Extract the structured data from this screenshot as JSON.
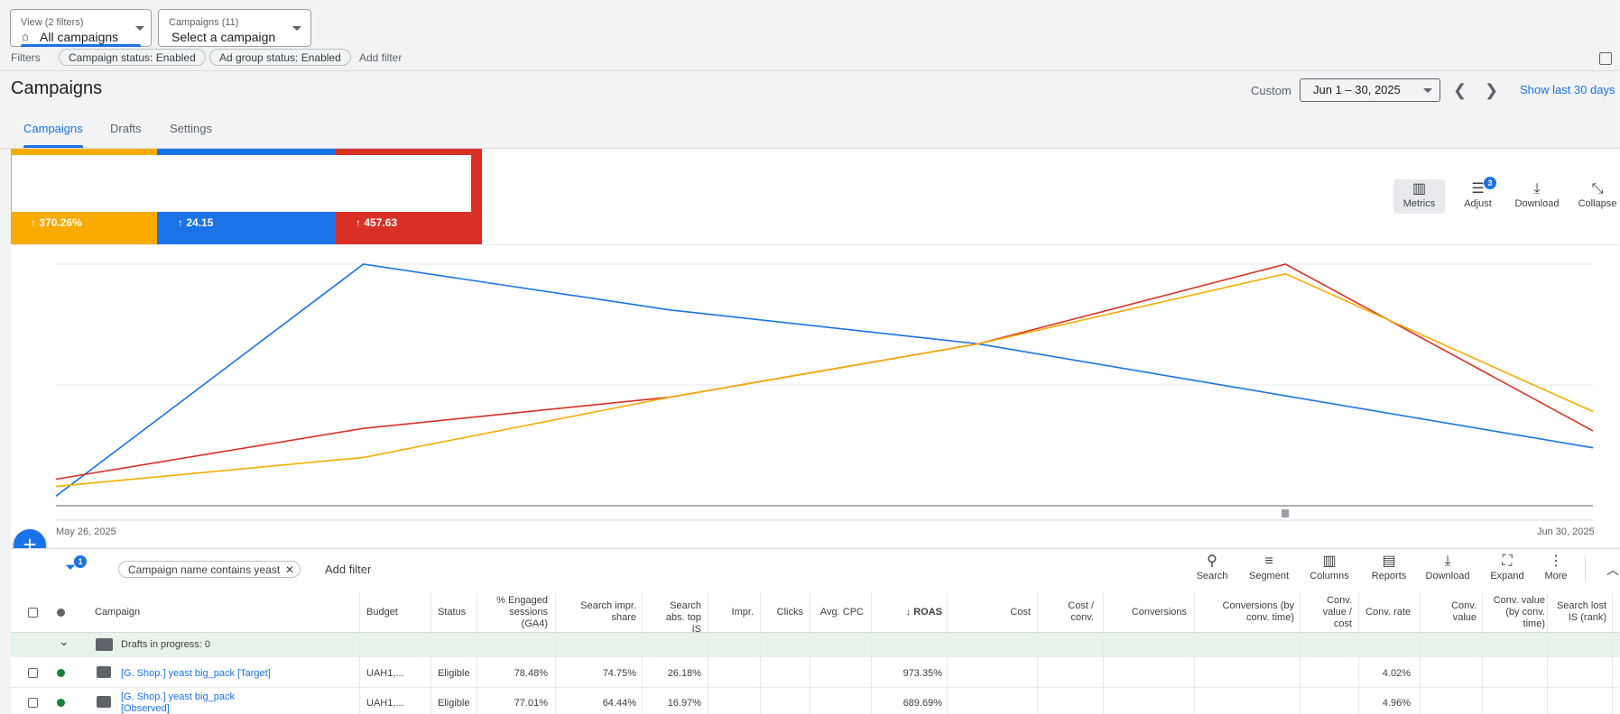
{
  "top": {
    "view_small": "View (2 filters)",
    "view_big": "All campaigns",
    "campaigns_small": "Campaigns (11)",
    "campaigns_big": "Select a campaign",
    "filters_label": "Filters",
    "chip1": "Campaign status: Enabled",
    "chip2": "Ad group status: Enabled",
    "add_filter": "Add filter"
  },
  "header": {
    "title": "Campaigns",
    "custom": "Custom",
    "date_range": "Jun 1 – 30, 2025",
    "show_last": "Show last 30 days"
  },
  "tabs": [
    "Campaigns",
    "Drafts",
    "Settings"
  ],
  "scorecards": [
    {
      "value": "370.26%",
      "color": "#f9ab00"
    },
    {
      "value": "24.15",
      "color": "#1a73e8"
    },
    {
      "value": "457.63",
      "color": "#d93025"
    }
  ],
  "chart_tools": {
    "metrics": "Metrics",
    "adjust": "Adjust",
    "adjust_badge": "3",
    "download": "Download",
    "collapse": "Collapse"
  },
  "chart_data": {
    "type": "line",
    "x": [
      "May 26, 2025",
      "Jun 2, 2025",
      "Jun 9, 2025",
      "Jun 16, 2025",
      "Jun 23, 2025",
      "Jun 30, 2025"
    ],
    "x_labels_shown": [
      "May 26, 2025",
      "Jun 30, 2025"
    ],
    "series": [
      {
        "color": "#1a73e8",
        "values": [
          0.04,
          1.0,
          0.81,
          0.67,
          null,
          0.24
        ]
      },
      {
        "color": "#d93025",
        "values": [
          0.11,
          0.32,
          0.45,
          0.67,
          1.0,
          0.31
        ]
      },
      {
        "color": "#f9ab00",
        "values": [
          0.08,
          0.2,
          0.45,
          0.67,
          0.96,
          0.39
        ]
      }
    ],
    "grid": true
  },
  "filterbar": {
    "filter_badge": "1",
    "chip": "Campaign name contains yeast",
    "add_filter": "Add filter",
    "tools": [
      "Search",
      "Segment",
      "Columns",
      "Reports",
      "Download",
      "Expand",
      "More"
    ]
  },
  "table": {
    "headers": {
      "campaign": "Campaign",
      "budget": "Budget",
      "status": "Status",
      "engaged": "% Engaged sessions (GA4)",
      "search_impr": "Search impr. share",
      "search_abs": "Search abs. top IS",
      "impr": "Impr.",
      "clicks": "Clicks",
      "avg_cpc": "Avg. CPC",
      "roas": "ROAS",
      "cost": "Cost",
      "cost_conv": "Cost / conv.",
      "conversions": "Conversions",
      "conv_by_time": "Conversions (by conv. time)",
      "conv_value_cost": "Conv. value / cost",
      "conv_rate": "Conv. rate",
      "conv_value": "Conv. value",
      "conv_value_time": "Conv. value (by conv. time)",
      "lost_is": "Search lost IS (rank)"
    },
    "drafts": "Drafts in progress: 0",
    "rows": [
      {
        "campaign": "[G. Shop.] yeast big_pack [Target]",
        "budget": "UAH1,...",
        "status": "Eligible",
        "engaged": "78.48%",
        "search_impr": "74.75%",
        "search_abs": "26.18%",
        "roas": "973.35%",
        "conv_rate": "4.02%"
      },
      {
        "campaign": "[G. Shop.] yeast big_pack",
        "campaign2": "[Observed]",
        "budget": "UAH1,...",
        "status": "Eligible",
        "engaged": "77.01%",
        "search_impr": "64.44%",
        "search_abs": "16.97%",
        "roas": "689.69%",
        "conv_rate": "4.96%"
      }
    ]
  }
}
